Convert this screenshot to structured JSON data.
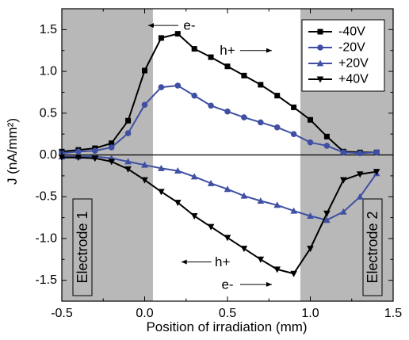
{
  "chart_data": {
    "type": "line",
    "xlabel": "Position of irradiation (mm)",
    "ylabel": "J (nA/mm²)",
    "xlim": [
      -0.5,
      1.5
    ],
    "ylim": [
      -1.75,
      1.75
    ],
    "xticks": [
      -0.5,
      0.0,
      0.5,
      1.0,
      1.5
    ],
    "xtick_labels": [
      "-0.5",
      "0.0",
      "0.5",
      "1.0",
      "1.5"
    ],
    "yticks": [
      -1.5,
      -1.0,
      -0.5,
      0.0,
      0.5,
      1.0,
      1.5
    ],
    "ytick_labels": [
      "-1.5",
      "-1.0",
      "-0.5",
      "0.0",
      "0.5",
      "1.0",
      "1.5"
    ],
    "grid": false,
    "legend": "top-right",
    "shaded_regions": [
      {
        "label": "Electrode 1",
        "x": [
          -0.5,
          0.05
        ],
        "color": "#b8b8b8"
      },
      {
        "label": "Electrode 2",
        "x": [
          0.94,
          1.5
        ],
        "color": "#b8b8b8"
      }
    ],
    "zero_line": true,
    "series": [
      {
        "name": "-40V",
        "color": "#000000",
        "marker": "square",
        "x": [
          -0.5,
          -0.4,
          -0.3,
          -0.2,
          -0.1,
          0.0,
          0.1,
          0.2,
          0.3,
          0.4,
          0.5,
          0.6,
          0.7,
          0.8,
          0.9,
          1.0,
          1.1,
          1.2,
          1.3,
          1.4
        ],
        "y": [
          0.04,
          0.06,
          0.08,
          0.14,
          0.41,
          1.01,
          1.4,
          1.45,
          1.27,
          1.17,
          1.06,
          0.95,
          0.84,
          0.71,
          0.57,
          0.42,
          0.22,
          0.04,
          0.03,
          0.03
        ]
      },
      {
        "name": "-20V",
        "color": "#3f4fa3",
        "marker": "circle",
        "x": [
          -0.5,
          -0.4,
          -0.3,
          -0.2,
          -0.1,
          0.0,
          0.1,
          0.2,
          0.3,
          0.4,
          0.5,
          0.6,
          0.7,
          0.8,
          0.9,
          1.0,
          1.1,
          1.2,
          1.3,
          1.4
        ],
        "y": [
          0.02,
          0.04,
          0.05,
          0.09,
          0.26,
          0.6,
          0.81,
          0.83,
          0.71,
          0.59,
          0.52,
          0.45,
          0.39,
          0.33,
          0.25,
          0.15,
          0.11,
          0.03,
          0.02,
          0.03
        ]
      },
      {
        "name": "+20V",
        "color": "#3f4fa3",
        "marker": "triangle-up",
        "x": [
          -0.5,
          -0.4,
          -0.3,
          -0.2,
          -0.1,
          0.0,
          0.1,
          0.2,
          0.3,
          0.4,
          0.5,
          0.6,
          0.7,
          0.8,
          0.9,
          1.0,
          1.1,
          1.2,
          1.3,
          1.4
        ],
        "y": [
          -0.02,
          -0.02,
          -0.02,
          -0.04,
          -0.08,
          -0.12,
          -0.16,
          -0.19,
          -0.26,
          -0.34,
          -0.41,
          -0.49,
          -0.55,
          -0.6,
          -0.67,
          -0.73,
          -0.78,
          -0.68,
          -0.5,
          -0.22
        ]
      },
      {
        "name": "+40V",
        "color": "#000000",
        "marker": "triangle-down",
        "x": [
          -0.5,
          -0.4,
          -0.3,
          -0.2,
          -0.1,
          0.0,
          0.1,
          0.2,
          0.3,
          0.4,
          0.5,
          0.6,
          0.7,
          0.8,
          0.9,
          1.0,
          1.1,
          1.2,
          1.3,
          1.4
        ],
        "y": [
          -0.03,
          -0.03,
          -0.04,
          -0.08,
          -0.17,
          -0.3,
          -0.44,
          -0.57,
          -0.73,
          -0.86,
          -0.99,
          -1.12,
          -1.25,
          -1.37,
          -1.42,
          -1.12,
          -0.7,
          -0.3,
          -0.23,
          -0.2
        ]
      }
    ],
    "annotations": [
      {
        "text": "e-",
        "x": 0.27,
        "y": 1.55,
        "arrow": "left"
      },
      {
        "text": "h+",
        "x": 0.5,
        "y": 1.25,
        "arrow": "right"
      },
      {
        "text": "h+",
        "x": 0.47,
        "y": -1.28,
        "arrow": "left"
      },
      {
        "text": "e-",
        "x": 0.5,
        "y": -1.55,
        "arrow": "right"
      }
    ]
  }
}
